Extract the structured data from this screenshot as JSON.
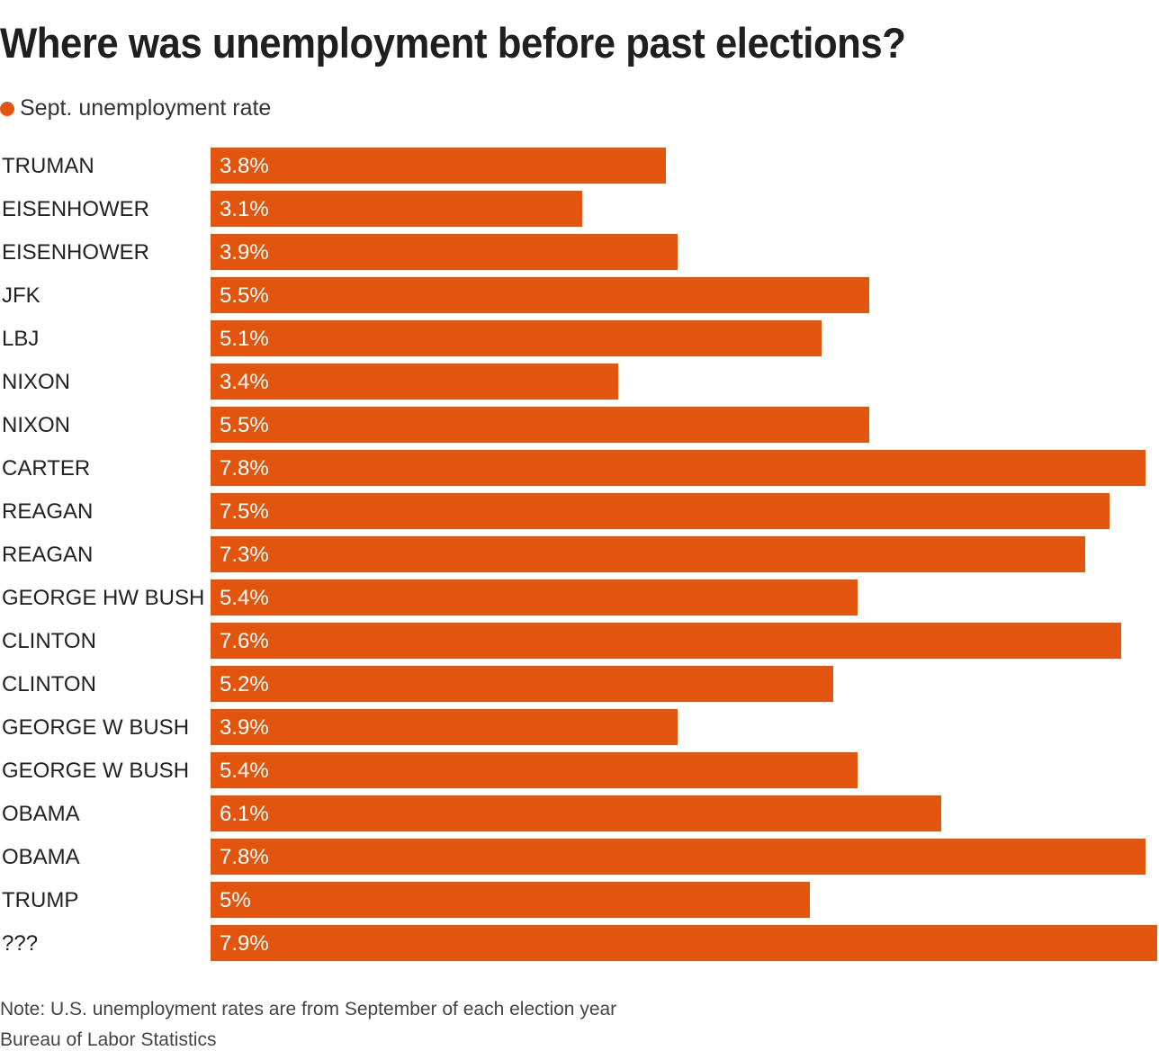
{
  "chart_data": {
    "type": "bar",
    "orientation": "horizontal",
    "title": "Where was unemployment before past elections?",
    "legend": [
      {
        "label": "Sept. unemployment rate",
        "color": "#E3550F"
      }
    ],
    "legend_position": "top-left",
    "categories": [
      "TRUMAN",
      "EISENHOWER",
      "EISENHOWER",
      "JFK",
      "LBJ",
      "NIXON",
      "NIXON",
      "CARTER",
      "REAGAN",
      "REAGAN",
      "GEORGE HW BUSH",
      "CLINTON",
      "CLINTON",
      "GEORGE W BUSH",
      "GEORGE W BUSH",
      "OBAMA",
      "OBAMA",
      "TRUMP",
      "???"
    ],
    "series": [
      {
        "name": "Sept. unemployment rate",
        "color": "#E3550F",
        "values": [
          3.8,
          3.1,
          3.9,
          5.5,
          5.1,
          3.4,
          5.5,
          7.8,
          7.5,
          7.3,
          5.4,
          7.6,
          5.2,
          3.9,
          5.4,
          6.1,
          7.8,
          5.0,
          7.9
        ],
        "data_labels": [
          "3.8%",
          "3.1%",
          "3.9%",
          "5.5%",
          "5.1%",
          "3.4%",
          "5.5%",
          "7.8%",
          "7.5%",
          "7.3%",
          "5.4%",
          "7.6%",
          "5.2%",
          "3.9%",
          "5.4%",
          "6.1%",
          "7.8%",
          "5%",
          "7.9%"
        ]
      }
    ],
    "xlabel": "",
    "ylabel": "",
    "xlim": [
      0,
      7.9
    ],
    "grid": false,
    "unit": "%",
    "note": "Note: U.S. unemployment rates are from September of each election year",
    "source": "Bureau of Labor Statistics"
  }
}
